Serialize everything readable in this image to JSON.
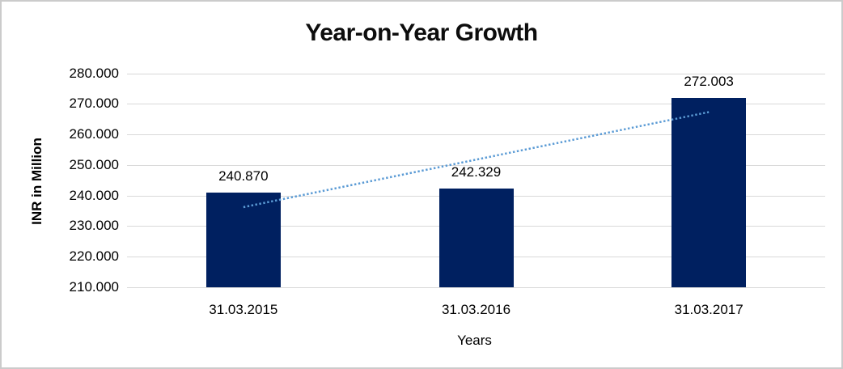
{
  "chart_data": {
    "type": "bar",
    "title": "Year-on-Year Growth",
    "xlabel": "Years",
    "ylabel": "INR in Million",
    "categories": [
      "31.03.2015",
      "31.03.2016",
      "31.03.2017"
    ],
    "values": [
      240.87,
      242.329,
      272.003
    ],
    "value_labels": [
      "240.870",
      "242.329",
      "272.003"
    ],
    "ylim": [
      210,
      280
    ],
    "yticks": [
      {
        "value": 210,
        "label": "210.000"
      },
      {
        "value": 220,
        "label": "220.000"
      },
      {
        "value": 230,
        "label": "230.000"
      },
      {
        "value": 240,
        "label": "240.000"
      },
      {
        "value": 250,
        "label": "250.000"
      },
      {
        "value": 260,
        "label": "260.000"
      },
      {
        "value": 270,
        "label": "270.000"
      },
      {
        "value": 280,
        "label": "280.000"
      }
    ],
    "grid": true,
    "legend": false,
    "trendline": {
      "type": "linear",
      "style": "dotted",
      "start_value": 236.2,
      "end_value": 267.3
    },
    "colors": {
      "bar": "#002060",
      "trendline": "#5B9BD5",
      "gridline": "#D9D9D9",
      "text": "#000000"
    }
  }
}
